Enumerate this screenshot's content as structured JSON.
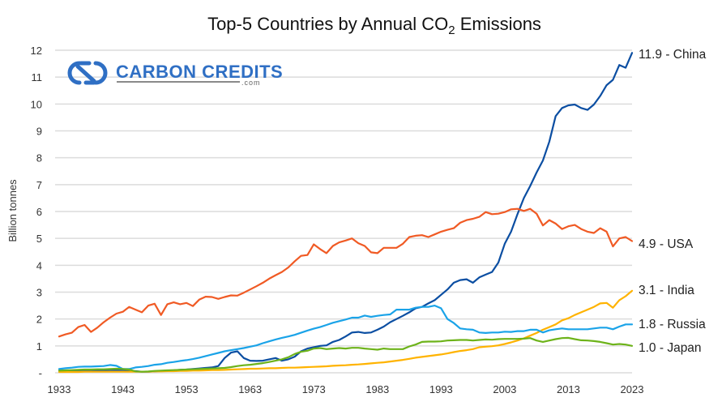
{
  "logo": {
    "name": "CARBON CREDITS",
    "suffix": ".com",
    "color": "#2F6FC4"
  },
  "chart_data": {
    "type": "line",
    "title_main": "Top-5 Countries by Annual CO",
    "title_sub": "2",
    "title_end": " Emissions",
    "title": "Top-5 Countries by Annual CO2 Emissions",
    "xlabel": "",
    "ylabel": "Billion tonnes",
    "xlim": [
      1933,
      2023
    ],
    "ylim": [
      0,
      12
    ],
    "yticks": [
      0,
      1,
      2,
      3,
      4,
      5,
      6,
      7,
      8,
      9,
      10,
      11,
      12
    ],
    "ytick_labels": [
      "-",
      "1",
      "2",
      "3",
      "4",
      "5",
      "6",
      "7",
      "8",
      "9",
      "10",
      "11",
      "12"
    ],
    "xticks": [
      1933,
      1943,
      1953,
      1963,
      1973,
      1983,
      1993,
      2003,
      2013,
      2023
    ],
    "xtick_labels": [
      "1933",
      "1943",
      "1953",
      "1963",
      "1973",
      "1983",
      "1993",
      "2003",
      "2013",
      "2023"
    ],
    "grid": true,
    "legend": "end-of-line labels (right)",
    "x": [
      1933,
      1934,
      1935,
      1936,
      1937,
      1938,
      1939,
      1940,
      1941,
      1942,
      1943,
      1944,
      1945,
      1946,
      1947,
      1948,
      1949,
      1950,
      1951,
      1952,
      1953,
      1954,
      1955,
      1956,
      1957,
      1958,
      1959,
      1960,
      1961,
      1962,
      1963,
      1964,
      1965,
      1966,
      1967,
      1968,
      1969,
      1970,
      1971,
      1972,
      1973,
      1974,
      1975,
      1976,
      1977,
      1978,
      1979,
      1980,
      1981,
      1982,
      1983,
      1984,
      1985,
      1986,
      1987,
      1988,
      1989,
      1990,
      1991,
      1992,
      1993,
      1994,
      1995,
      1996,
      1997,
      1998,
      1999,
      2000,
      2001,
      2002,
      2003,
      2004,
      2005,
      2006,
      2007,
      2008,
      2009,
      2010,
      2011,
      2012,
      2013,
      2014,
      2015,
      2016,
      2017,
      2018,
      2019,
      2020,
      2021,
      2022,
      2023
    ],
    "series": [
      {
        "name": "China",
        "end_label": "11.9 - China",
        "color": "#0B4EA2",
        "values": [
          0.08,
          0.08,
          0.08,
          0.08,
          0.09,
          0.09,
          0.09,
          0.09,
          0.1,
          0.1,
          0.1,
          0.08,
          0.06,
          0.04,
          0.04,
          0.05,
          0.07,
          0.08,
          0.09,
          0.11,
          0.12,
          0.14,
          0.16,
          0.18,
          0.2,
          0.25,
          0.55,
          0.75,
          0.8,
          0.55,
          0.45,
          0.44,
          0.45,
          0.5,
          0.55,
          0.45,
          0.5,
          0.6,
          0.8,
          0.9,
          0.95,
          1.0,
          1.02,
          1.15,
          1.22,
          1.35,
          1.5,
          1.52,
          1.48,
          1.5,
          1.6,
          1.72,
          1.88,
          2.0,
          2.12,
          2.25,
          2.4,
          2.45,
          2.58,
          2.7,
          2.9,
          3.1,
          3.35,
          3.45,
          3.48,
          3.35,
          3.55,
          3.65,
          3.75,
          4.1,
          4.8,
          5.25,
          5.9,
          6.5,
          6.95,
          7.45,
          7.9,
          8.6,
          9.55,
          9.85,
          9.95,
          9.98,
          9.85,
          9.78,
          9.98,
          10.3,
          10.7,
          10.9,
          11.45,
          11.35,
          11.9
        ]
      },
      {
        "name": "USA",
        "end_label": "4.9 - USA",
        "color": "#F05A24",
        "values": [
          1.35,
          1.43,
          1.49,
          1.7,
          1.78,
          1.52,
          1.68,
          1.88,
          2.05,
          2.2,
          2.27,
          2.45,
          2.35,
          2.25,
          2.5,
          2.57,
          2.15,
          2.55,
          2.62,
          2.55,
          2.6,
          2.48,
          2.72,
          2.83,
          2.82,
          2.75,
          2.82,
          2.88,
          2.87,
          2.98,
          3.1,
          3.22,
          3.35,
          3.5,
          3.63,
          3.75,
          3.92,
          4.15,
          4.35,
          4.38,
          4.78,
          4.6,
          4.45,
          4.72,
          4.85,
          4.92,
          5.0,
          4.82,
          4.72,
          4.48,
          4.45,
          4.65,
          4.65,
          4.65,
          4.8,
          5.05,
          5.1,
          5.12,
          5.05,
          5.15,
          5.25,
          5.32,
          5.38,
          5.58,
          5.68,
          5.73,
          5.8,
          5.98,
          5.9,
          5.92,
          5.98,
          6.08,
          6.1,
          6.02,
          6.1,
          5.92,
          5.48,
          5.68,
          5.55,
          5.35,
          5.45,
          5.5,
          5.35,
          5.25,
          5.2,
          5.38,
          5.25,
          4.7,
          5.0,
          5.05,
          4.9
        ]
      },
      {
        "name": "India",
        "end_label": "3.1 - India",
        "color": "#FFB300",
        "values": [
          0.03,
          0.03,
          0.03,
          0.03,
          0.04,
          0.04,
          0.04,
          0.04,
          0.04,
          0.04,
          0.04,
          0.04,
          0.04,
          0.04,
          0.04,
          0.05,
          0.05,
          0.06,
          0.06,
          0.07,
          0.07,
          0.08,
          0.08,
          0.09,
          0.1,
          0.1,
          0.11,
          0.12,
          0.13,
          0.14,
          0.15,
          0.15,
          0.16,
          0.17,
          0.17,
          0.18,
          0.19,
          0.19,
          0.2,
          0.21,
          0.22,
          0.23,
          0.24,
          0.26,
          0.27,
          0.28,
          0.3,
          0.31,
          0.33,
          0.35,
          0.37,
          0.39,
          0.42,
          0.45,
          0.48,
          0.52,
          0.56,
          0.59,
          0.62,
          0.65,
          0.68,
          0.72,
          0.77,
          0.81,
          0.84,
          0.88,
          0.95,
          0.97,
          0.99,
          1.02,
          1.07,
          1.13,
          1.2,
          1.28,
          1.38,
          1.48,
          1.6,
          1.7,
          1.8,
          1.95,
          2.03,
          2.15,
          2.25,
          2.35,
          2.45,
          2.58,
          2.6,
          2.42,
          2.7,
          2.85,
          3.05
        ]
      },
      {
        "name": "Russia",
        "end_label": "1.8 - Russia",
        "color": "#1AA3E8",
        "values": [
          0.14,
          0.17,
          0.19,
          0.22,
          0.23,
          0.23,
          0.24,
          0.25,
          0.29,
          0.26,
          0.14,
          0.14,
          0.2,
          0.22,
          0.25,
          0.3,
          0.32,
          0.37,
          0.4,
          0.44,
          0.47,
          0.51,
          0.56,
          0.62,
          0.68,
          0.74,
          0.8,
          0.84,
          0.88,
          0.92,
          0.97,
          1.02,
          1.1,
          1.17,
          1.24,
          1.3,
          1.35,
          1.41,
          1.49,
          1.57,
          1.64,
          1.7,
          1.78,
          1.86,
          1.92,
          1.98,
          2.05,
          2.05,
          2.13,
          2.08,
          2.12,
          2.15,
          2.17,
          2.35,
          2.35,
          2.35,
          2.42,
          2.45,
          2.45,
          2.5,
          2.4,
          2.0,
          1.85,
          1.65,
          1.62,
          1.6,
          1.5,
          1.48,
          1.5,
          1.5,
          1.53,
          1.52,
          1.55,
          1.55,
          1.6,
          1.6,
          1.5,
          1.58,
          1.62,
          1.65,
          1.62,
          1.62,
          1.62,
          1.62,
          1.65,
          1.68,
          1.68,
          1.62,
          1.72,
          1.8,
          1.8
        ]
      },
      {
        "name": "Japan",
        "end_label": "1.0 - Japan",
        "color": "#6DB31A",
        "values": [
          0.08,
          0.09,
          0.1,
          0.11,
          0.12,
          0.12,
          0.13,
          0.13,
          0.14,
          0.15,
          0.14,
          0.12,
          0.05,
          0.04,
          0.05,
          0.07,
          0.08,
          0.09,
          0.1,
          0.11,
          0.12,
          0.13,
          0.14,
          0.15,
          0.16,
          0.17,
          0.18,
          0.21,
          0.25,
          0.28,
          0.3,
          0.33,
          0.36,
          0.4,
          0.45,
          0.5,
          0.58,
          0.7,
          0.78,
          0.82,
          0.9,
          0.92,
          0.88,
          0.9,
          0.92,
          0.9,
          0.93,
          0.93,
          0.9,
          0.88,
          0.86,
          0.9,
          0.88,
          0.88,
          0.88,
          0.98,
          1.05,
          1.15,
          1.16,
          1.16,
          1.17,
          1.2,
          1.21,
          1.22,
          1.22,
          1.2,
          1.22,
          1.24,
          1.23,
          1.25,
          1.26,
          1.26,
          1.26,
          1.27,
          1.29,
          1.2,
          1.15,
          1.2,
          1.25,
          1.29,
          1.3,
          1.25,
          1.21,
          1.2,
          1.18,
          1.15,
          1.1,
          1.05,
          1.07,
          1.05,
          1.0
        ]
      }
    ]
  }
}
